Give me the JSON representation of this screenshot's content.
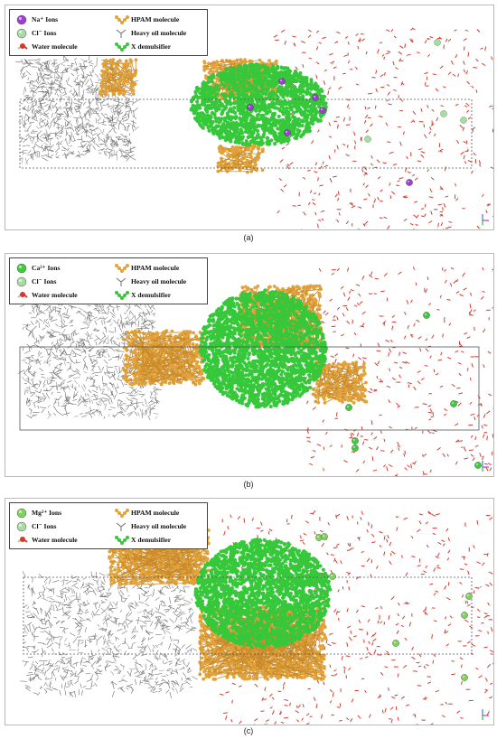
{
  "panels": [
    {
      "caption": "(a)",
      "legend": [
        {
          "label": "Na⁺ Ions",
          "icon": "sodium-ion-icon",
          "color": "#9b3fd0"
        },
        {
          "label": "HPAM molecule",
          "icon": "hpam-molecule-icon",
          "color": "#e3a33a"
        },
        {
          "label": "Cl⁻ Ions",
          "icon": "chloride-ion-icon",
          "color": "#a9dba4"
        },
        {
          "label": "Heavy oil molecule",
          "icon": "heavy-oil-molecule-icon",
          "color": "#6f6f6f"
        },
        {
          "label": "Water molecule",
          "icon": "water-molecule-icon",
          "color": "#d33a2c"
        },
        {
          "label": "X demulsifier",
          "icon": "x-demulsifier-icon",
          "color": "#36c83a"
        }
      ],
      "cation_color": "#9b3fd0"
    },
    {
      "caption": "(b)",
      "legend": [
        {
          "label": "Ca²⁺ Ions",
          "icon": "calcium-ion-icon",
          "color": "#3fcc3a"
        },
        {
          "label": "HPAM molecule",
          "icon": "hpam-molecule-icon",
          "color": "#e3a33a"
        },
        {
          "label": "Cl⁻ Ions",
          "icon": "chloride-ion-icon",
          "color": "#a9dba4"
        },
        {
          "label": "Heavy oil molecule",
          "icon": "heavy-oil-molecule-icon",
          "color": "#6f6f6f"
        },
        {
          "label": "Water molecule",
          "icon": "water-molecule-icon",
          "color": "#d33a2c"
        },
        {
          "label": "X demulsifier",
          "icon": "x-demulsifier-icon",
          "color": "#36c83a"
        }
      ],
      "cation_color": "#3fcc3a"
    },
    {
      "caption": "(c)",
      "legend": [
        {
          "label": "Mg²⁺ Ions",
          "icon": "magnesium-ion-icon",
          "color": "#7fd35a"
        },
        {
          "label": "HPAM molecule",
          "icon": "hpam-molecule-icon",
          "color": "#e3a33a"
        },
        {
          "label": "Cl⁻ Ions",
          "icon": "chloride-ion-icon",
          "color": "#a9dba4"
        },
        {
          "label": "Heavy oil molecule",
          "icon": "heavy-oil-molecule-icon",
          "color": "#6f6f6f"
        },
        {
          "label": "Water molecule",
          "icon": "water-molecule-icon",
          "color": "#d33a2c"
        },
        {
          "label": "X demulsifier",
          "icon": "x-demulsifier-icon",
          "color": "#36c83a"
        }
      ],
      "cation_color": "#7fd35a"
    }
  ],
  "colors": {
    "oil": "#6f6f6f",
    "hpam": "#e3a33a",
    "demulsifier": "#36c83a",
    "water": "#d33a2c",
    "chloride": "#a9dba4",
    "box": "#555555"
  }
}
